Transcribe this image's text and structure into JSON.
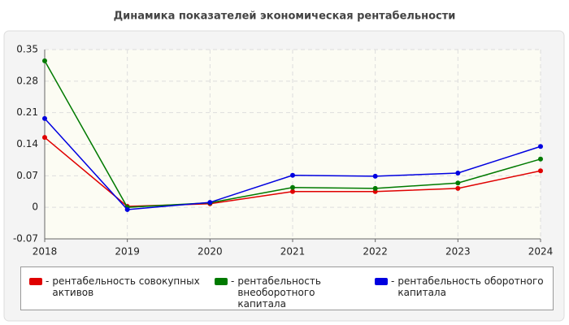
{
  "chart_data": {
    "type": "line",
    "title": "Динамика показателей экономическая рентабельности",
    "categories": [
      "2018",
      "2019",
      "2020",
      "2021",
      "2022",
      "2023",
      "2024"
    ],
    "series": [
      {
        "name": "рентабельность совокупных активов",
        "color": "#e00000",
        "values": [
          0.155,
          0.002,
          0.008,
          0.035,
          0.035,
          0.042,
          0.081
        ]
      },
      {
        "name": "рентабельность внеоборотного капитала",
        "color": "#007a00",
        "values": [
          0.325,
          0.0,
          0.01,
          0.044,
          0.042,
          0.054,
          0.107
        ]
      },
      {
        "name": "рентабельность оборотного капитала",
        "color": "#0000e0",
        "values": [
          0.197,
          -0.005,
          0.011,
          0.071,
          0.069,
          0.076,
          0.135
        ]
      }
    ],
    "ylim": [
      -0.07,
      0.35
    ],
    "yticks": [
      0.35,
      0.28,
      0.21,
      0.14,
      0.07,
      0,
      -0.07
    ],
    "grid": true
  }
}
